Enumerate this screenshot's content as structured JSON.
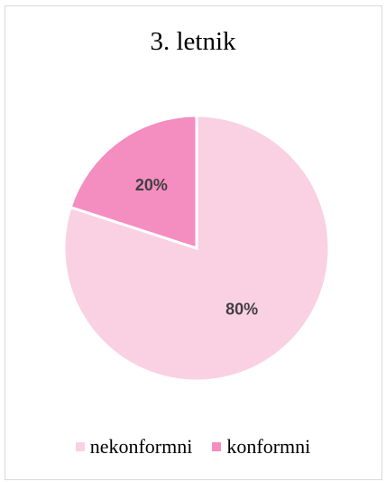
{
  "chart_data": {
    "type": "pie",
    "title": "3. letnik",
    "categories": [
      "nekonformni",
      "konformni"
    ],
    "values": [
      80,
      20
    ],
    "data_labels": [
      "80%",
      "20%"
    ],
    "colors": [
      "#f9d1e3",
      "#f48dc0"
    ],
    "legend_position": "bottom"
  }
}
